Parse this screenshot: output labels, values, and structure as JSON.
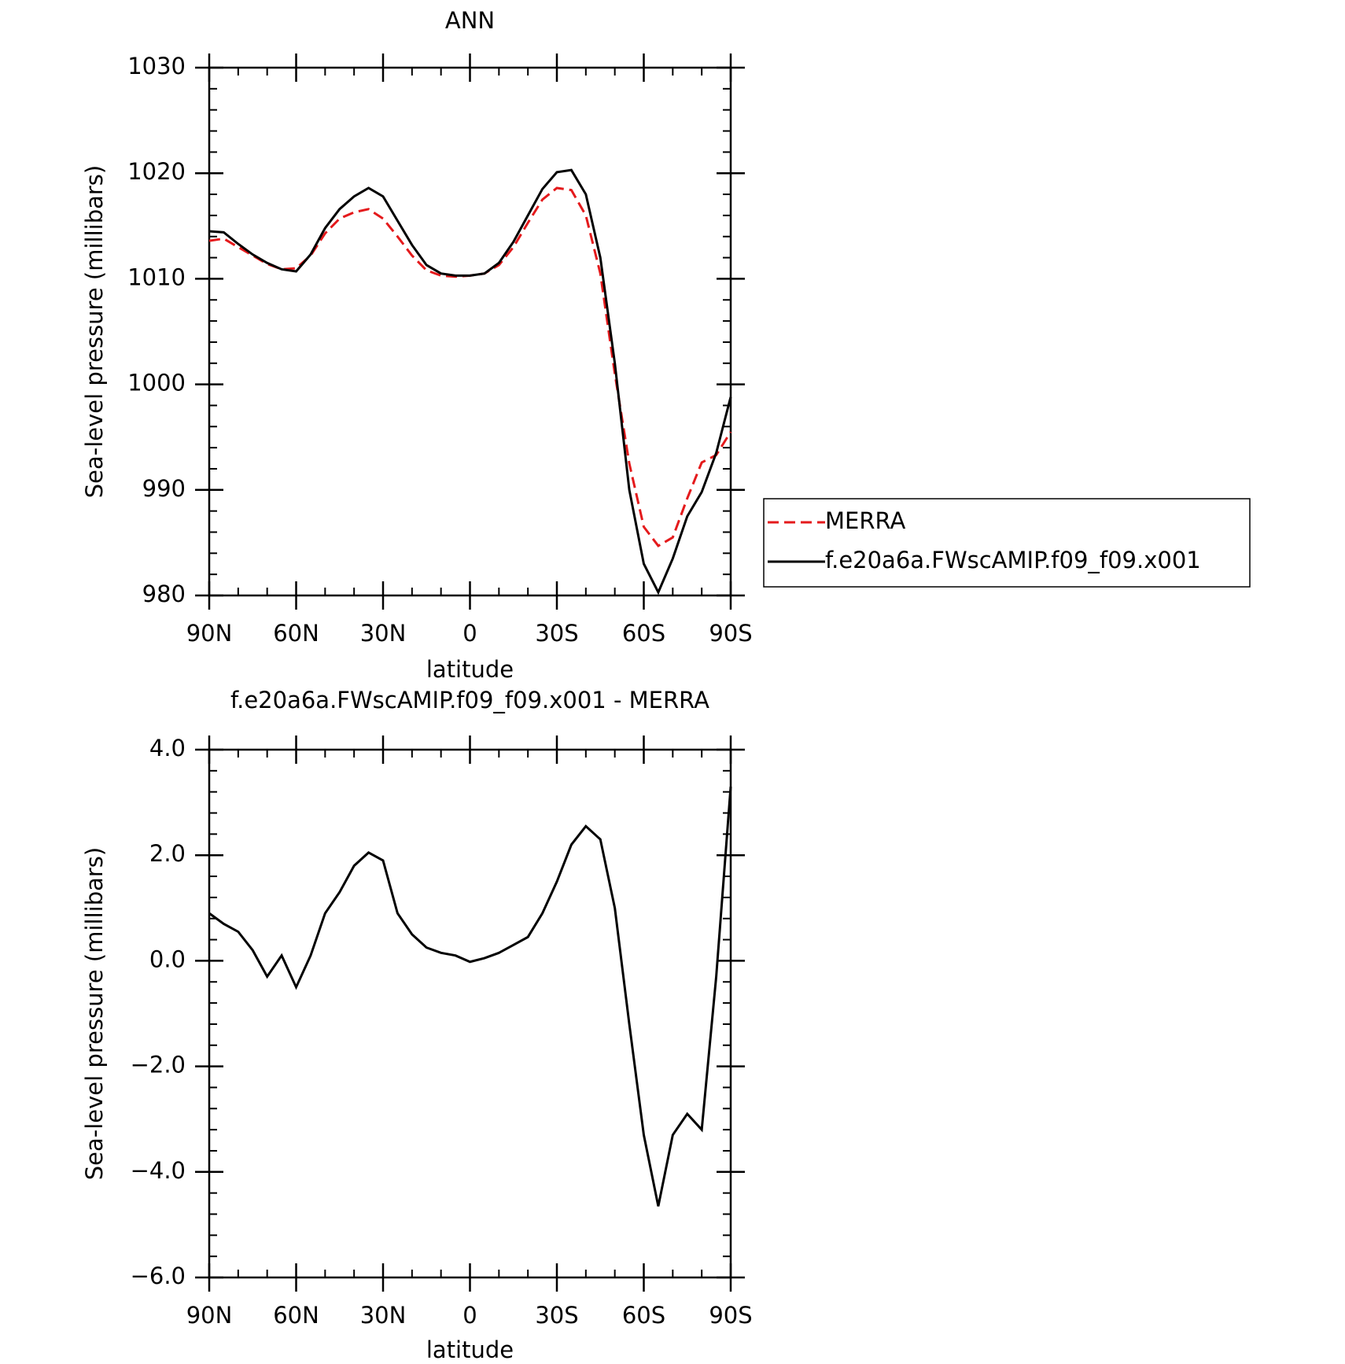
{
  "chart_data": [
    {
      "type": "line",
      "title": "ANN",
      "xlabel": "latitude",
      "ylabel": "Sea-level pressure (millibars)",
      "x": [
        90,
        85,
        80,
        75,
        70,
        65,
        60,
        55,
        50,
        45,
        40,
        35,
        30,
        25,
        20,
        15,
        10,
        5,
        0,
        -5,
        -10,
        -15,
        -20,
        -25,
        -30,
        -35,
        -40,
        -45,
        -50,
        -55,
        -60,
        -65,
        -70,
        -75,
        -80,
        -85,
        -90
      ],
      "series": [
        {
          "name": "MERRA",
          "color": "#e41a1c",
          "dash": true,
          "values": [
            1013.6,
            1013.8,
            1013,
            1012.2,
            1011.4,
            1010.9,
            1011,
            1012.2,
            1014.3,
            1015.7,
            1016.3,
            1016.6,
            1015.7,
            1014,
            1012.2,
            1010.8,
            1010.3,
            1010.2,
            1010.3,
            1010.5,
            1011.3,
            1013,
            1015.3,
            1017.5,
            1018.6,
            1018.4,
            1016,
            1010.5,
            1001,
            992.5,
            986.5,
            984.7,
            985.5,
            989.2,
            992.6,
            993.3,
            995.5
          ]
        },
        {
          "name": "f.e20a6a.FWscAMIP.f09_f09.x001",
          "color": "#000000",
          "dash": false,
          "values": [
            1014.5,
            1014.4,
            1013.3,
            1012.3,
            1011.5,
            1010.9,
            1010.7,
            1012.3,
            1014.8,
            1016.6,
            1017.8,
            1018.6,
            1017.8,
            1015.5,
            1013.2,
            1011.3,
            1010.5,
            1010.3,
            1010.3,
            1010.5,
            1011.5,
            1013.5,
            1016,
            1018.5,
            1020.1,
            1020.3,
            1018,
            1012,
            1002,
            990,
            983,
            980.3,
            983.5,
            987.5,
            989.8,
            993.5,
            998.8
          ]
        }
      ],
      "xlim": [
        90,
        -90
      ],
      "xticks": [
        {
          "value": 90,
          "label": "90N"
        },
        {
          "value": 60,
          "label": "60N"
        },
        {
          "value": 30,
          "label": "30N"
        },
        0,
        {
          "value": -30,
          "label": "30S"
        },
        {
          "value": -60,
          "label": "60S"
        },
        {
          "value": -90,
          "label": "90S"
        }
      ],
      "ylim": [
        980,
        1030
      ],
      "yticks": [
        980,
        990,
        1000,
        1010,
        1020,
        1030
      ],
      "legend": "right"
    },
    {
      "type": "line",
      "title": "f.e20a6a.FWscAMIP.f09_f09.x001 - MERRA",
      "xlabel": "latitude",
      "ylabel": "Sea-level pressure (millibars)",
      "x": [
        90,
        85,
        80,
        75,
        70,
        65,
        60,
        55,
        50,
        45,
        40,
        35,
        30,
        25,
        20,
        15,
        10,
        5,
        0,
        -5,
        -10,
        -15,
        -20,
        -25,
        -30,
        -35,
        -40,
        -45,
        -50,
        -55,
        -60,
        -65,
        -70,
        -75,
        -80,
        -85,
        -90
      ],
      "series": [
        {
          "color": "#000000",
          "dash": false,
          "values": [
            0.9,
            0.7,
            0.55,
            0.2,
            -0.3,
            0.1,
            -0.5,
            0.1,
            0.9,
            1.3,
            1.8,
            2.05,
            1.9,
            0.9,
            0.5,
            0.25,
            0.15,
            0.1,
            -0.02,
            0.05,
            0.15,
            0.3,
            0.45,
            0.9,
            1.5,
            2.2,
            2.55,
            2.3,
            1.0,
            -1.2,
            -3.3,
            -4.65,
            -3.3,
            -2.9,
            -3.2,
            -0.3,
            3.3
          ]
        }
      ],
      "xlim": [
        90,
        -90
      ],
      "xticks": [
        {
          "value": 90,
          "label": "90N"
        },
        {
          "value": 60,
          "label": "60N"
        },
        {
          "value": 30,
          "label": "30N"
        },
        0,
        {
          "value": -30,
          "label": "30S"
        },
        {
          "value": -60,
          "label": "60S"
        },
        {
          "value": -90,
          "label": "90S"
        }
      ],
      "ylim": [
        -6,
        4
      ],
      "yticks": [
        {
          "value": -6,
          "label": "−6.0"
        },
        {
          "value": -4,
          "label": "−4.0"
        },
        {
          "value": -2,
          "label": "−2.0"
        },
        {
          "value": 0,
          "label": "0.0"
        },
        {
          "value": 2,
          "label": "2.0"
        },
        {
          "value": 4,
          "label": "4.0"
        }
      ]
    }
  ]
}
